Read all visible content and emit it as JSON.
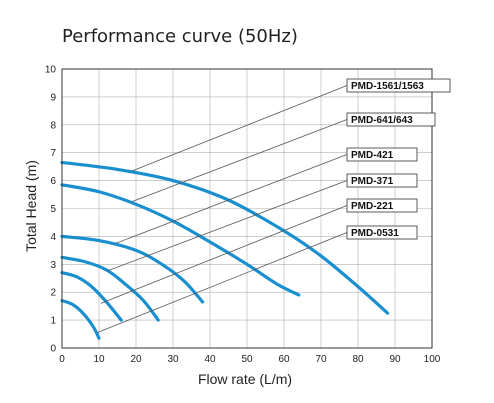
{
  "chart_data": {
    "type": "line",
    "title": "Performance curve  (50Hz)",
    "xlabel": "Flow rate (L/m)",
    "ylabel": "Total Head (m)",
    "xlim": [
      0,
      100
    ],
    "ylim": [
      0,
      10
    ],
    "x_ticks": [
      "0",
      "10",
      "20",
      "30",
      "40",
      "50",
      "60",
      "70",
      "80",
      "90",
      "100"
    ],
    "y_ticks": [
      "0",
      "1",
      "2",
      "3",
      "4",
      "5",
      "6",
      "7",
      "8",
      "9",
      "10"
    ],
    "grid": true,
    "curve_color": "#1a8fd0",
    "leader_color": "#555555",
    "series": [
      {
        "name": "PMD-1561/1563",
        "x": [
          0,
          15,
          30,
          45,
          60,
          70,
          80,
          88
        ],
        "y": [
          6.65,
          6.4,
          6.0,
          5.3,
          4.2,
          3.3,
          2.2,
          1.25
        ]
      },
      {
        "name": "PMD-641/643",
        "x": [
          0,
          10,
          20,
          30,
          40,
          50,
          58,
          64
        ],
        "y": [
          5.85,
          5.6,
          5.15,
          4.55,
          3.8,
          3.0,
          2.3,
          1.9
        ]
      },
      {
        "name": "PMD-421",
        "x": [
          0,
          10,
          20,
          27,
          33,
          38
        ],
        "y": [
          4.0,
          3.85,
          3.5,
          3.0,
          2.4,
          1.65
        ]
      },
      {
        "name": "PMD-371",
        "x": [
          0,
          6,
          12,
          17,
          22,
          26
        ],
        "y": [
          3.25,
          3.1,
          2.8,
          2.3,
          1.7,
          1.0
        ]
      },
      {
        "name": "PMD-221",
        "x": [
          0,
          4,
          8,
          12,
          16
        ],
        "y": [
          2.7,
          2.55,
          2.2,
          1.65,
          1.0
        ]
      },
      {
        "name": "PMD-0531",
        "x": [
          0,
          3,
          6,
          8.5,
          10
        ],
        "y": [
          1.7,
          1.55,
          1.2,
          0.75,
          0.35
        ]
      }
    ]
  }
}
